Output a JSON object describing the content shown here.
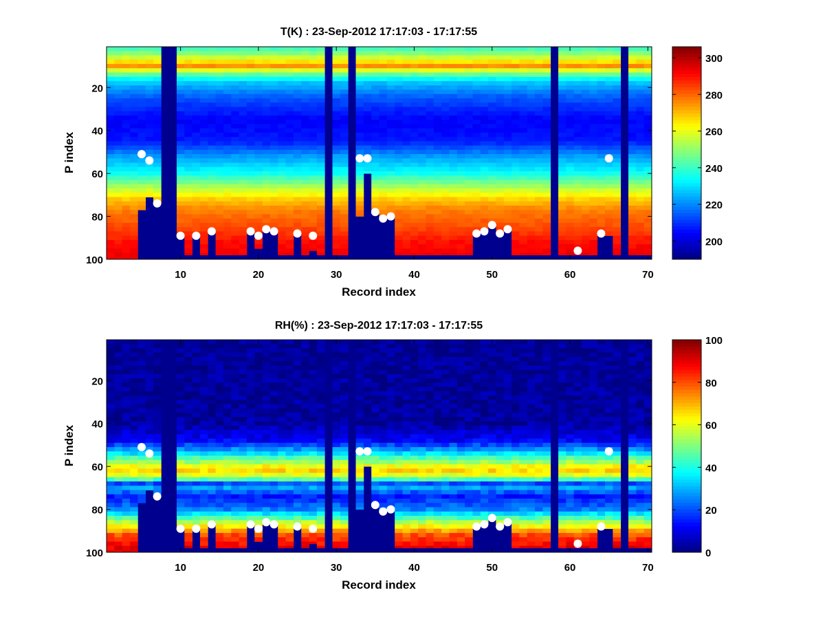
{
  "chart_data": [
    {
      "type": "heatmap",
      "title": "T(K) : 23-Sep-2012 17:17:03 - 17:17:55",
      "xlabel": "Record index",
      "ylabel": "P index",
      "xlim": [
        0.5,
        70.5
      ],
      "ylim": [
        1,
        100
      ],
      "y_reversed": true,
      "colormap": "jet",
      "x_ticks": [
        10,
        20,
        30,
        40,
        50,
        60,
        70
      ],
      "y_ticks": [
        20,
        40,
        60,
        80,
        100
      ],
      "colorbar": {
        "min": 190,
        "max": 306,
        "ticks": [
          200,
          220,
          240,
          260,
          280,
          300
        ]
      },
      "profile": {
        "p_index": [
          1,
          5,
          10,
          13,
          17,
          25,
          35,
          45,
          52,
          60,
          66,
          72,
          77,
          85,
          92,
          100
        ],
        "value": [
          238,
          252,
          275,
          250,
          228,
          214,
          204,
          207,
          222,
          235,
          252,
          268,
          277,
          283,
          290,
          294
        ]
      }
    },
    {
      "type": "heatmap",
      "title": "RH(%) : 23-Sep-2012 17:17:03 - 17:17:55",
      "xlabel": "Record index",
      "ylabel": "P index",
      "xlim": [
        0.5,
        70.5
      ],
      "ylim": [
        1,
        100
      ],
      "y_reversed": true,
      "colormap": "jet",
      "x_ticks": [
        10,
        20,
        30,
        40,
        50,
        60,
        70
      ],
      "y_ticks": [
        20,
        40,
        60,
        80,
        100
      ],
      "colorbar": {
        "min": 0,
        "max": 100,
        "ticks": [
          0,
          20,
          40,
          60,
          80,
          100
        ]
      },
      "profile": {
        "p_index": [
          1,
          40,
          48,
          53,
          56,
          60,
          63,
          66,
          68,
          70,
          74,
          80,
          86,
          92,
          98,
          100
        ],
        "value": [
          2,
          3,
          12,
          30,
          45,
          62,
          68,
          45,
          20,
          28,
          15,
          25,
          55,
          80,
          90,
          92
        ]
      }
    }
  ],
  "shared": {
    "records": 70,
    "levels": 100,
    "invalid_columns": [
      8,
      9,
      29,
      32,
      58,
      67
    ],
    "surface_index": [
      100,
      100,
      100,
      100,
      77,
      71,
      74,
      100,
      100,
      89,
      98,
      89,
      98,
      87,
      98,
      98,
      98,
      98,
      87,
      95,
      86,
      87,
      98,
      98,
      88,
      98,
      96,
      98,
      100,
      98,
      98,
      100,
      80,
      60,
      78,
      81,
      80,
      98,
      98,
      98,
      98,
      98,
      98,
      98,
      98,
      98,
      98,
      88,
      87,
      84,
      88,
      86,
      98,
      98,
      98,
      98,
      98,
      100,
      98,
      98,
      98,
      98,
      98,
      89,
      89,
      98,
      100,
      98,
      98,
      98
    ],
    "markers": [
      {
        "record": 5,
        "p": 51
      },
      {
        "record": 6,
        "p": 54
      },
      {
        "record": 7,
        "p": 74
      },
      {
        "record": 10,
        "p": 89
      },
      {
        "record": 12,
        "p": 89
      },
      {
        "record": 14,
        "p": 87
      },
      {
        "record": 19,
        "p": 87
      },
      {
        "record": 20,
        "p": 89
      },
      {
        "record": 21,
        "p": 86
      },
      {
        "record": 22,
        "p": 87
      },
      {
        "record": 25,
        "p": 88
      },
      {
        "record": 27,
        "p": 89
      },
      {
        "record": 33,
        "p": 53
      },
      {
        "record": 34,
        "p": 53
      },
      {
        "record": 35,
        "p": 78
      },
      {
        "record": 36,
        "p": 81
      },
      {
        "record": 37,
        "p": 80
      },
      {
        "record": 48,
        "p": 88
      },
      {
        "record": 49,
        "p": 87
      },
      {
        "record": 50,
        "p": 84
      },
      {
        "record": 51,
        "p": 88
      },
      {
        "record": 52,
        "p": 86
      },
      {
        "record": 61,
        "p": 96
      },
      {
        "record": 64,
        "p": 88
      },
      {
        "record": 65,
        "p": 53
      }
    ],
    "marker_color": "#ffffff",
    "no_data_color": "#00008f"
  }
}
